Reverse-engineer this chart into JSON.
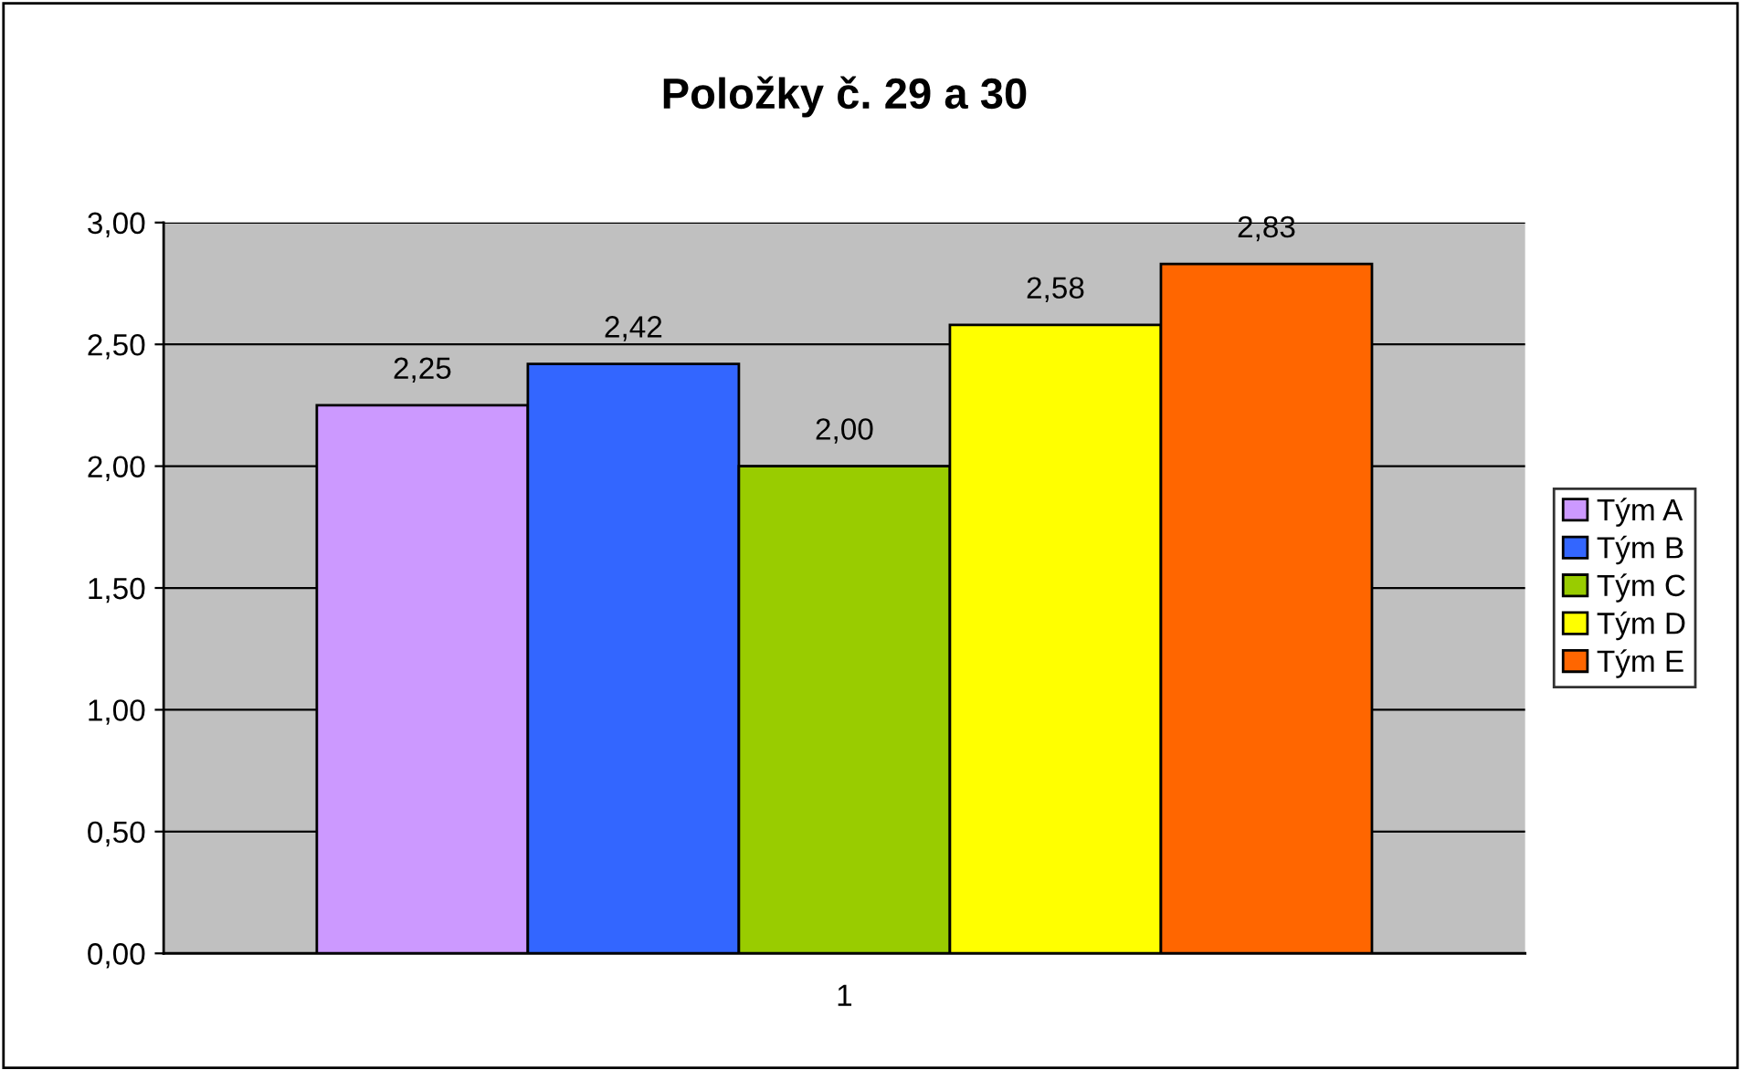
{
  "chart_data": {
    "type": "bar",
    "title": "Položky č. 29 a 30",
    "categories": [
      "1"
    ],
    "series": [
      {
        "name": "Tým A",
        "color": "#cc99ff",
        "values": [
          2.25
        ],
        "value_labels": [
          "2,25"
        ]
      },
      {
        "name": "Tým B",
        "color": "#3366ff",
        "values": [
          2.42
        ],
        "value_labels": [
          "2,42"
        ]
      },
      {
        "name": "Tým C",
        "color": "#99cc00",
        "values": [
          2.0
        ],
        "value_labels": [
          "2,00"
        ]
      },
      {
        "name": "Tým D",
        "color": "#ffff00",
        "values": [
          2.58
        ],
        "value_labels": [
          "2,58"
        ]
      },
      {
        "name": "Tým E",
        "color": "#ff6600",
        "values": [
          2.83
        ],
        "value_labels": [
          "2,83"
        ]
      }
    ],
    "ylim": [
      0,
      3
    ],
    "yticks": [
      {
        "value": 0,
        "label": "0,00"
      },
      {
        "value": 0.5,
        "label": "0,50"
      },
      {
        "value": 1,
        "label": "1,00"
      },
      {
        "value": 1.5,
        "label": "1,50"
      },
      {
        "value": 2,
        "label": "2,00"
      },
      {
        "value": 2.5,
        "label": "2,50"
      },
      {
        "value": 3,
        "label": "3,00"
      }
    ],
    "grid": "y",
    "legend": "right"
  }
}
